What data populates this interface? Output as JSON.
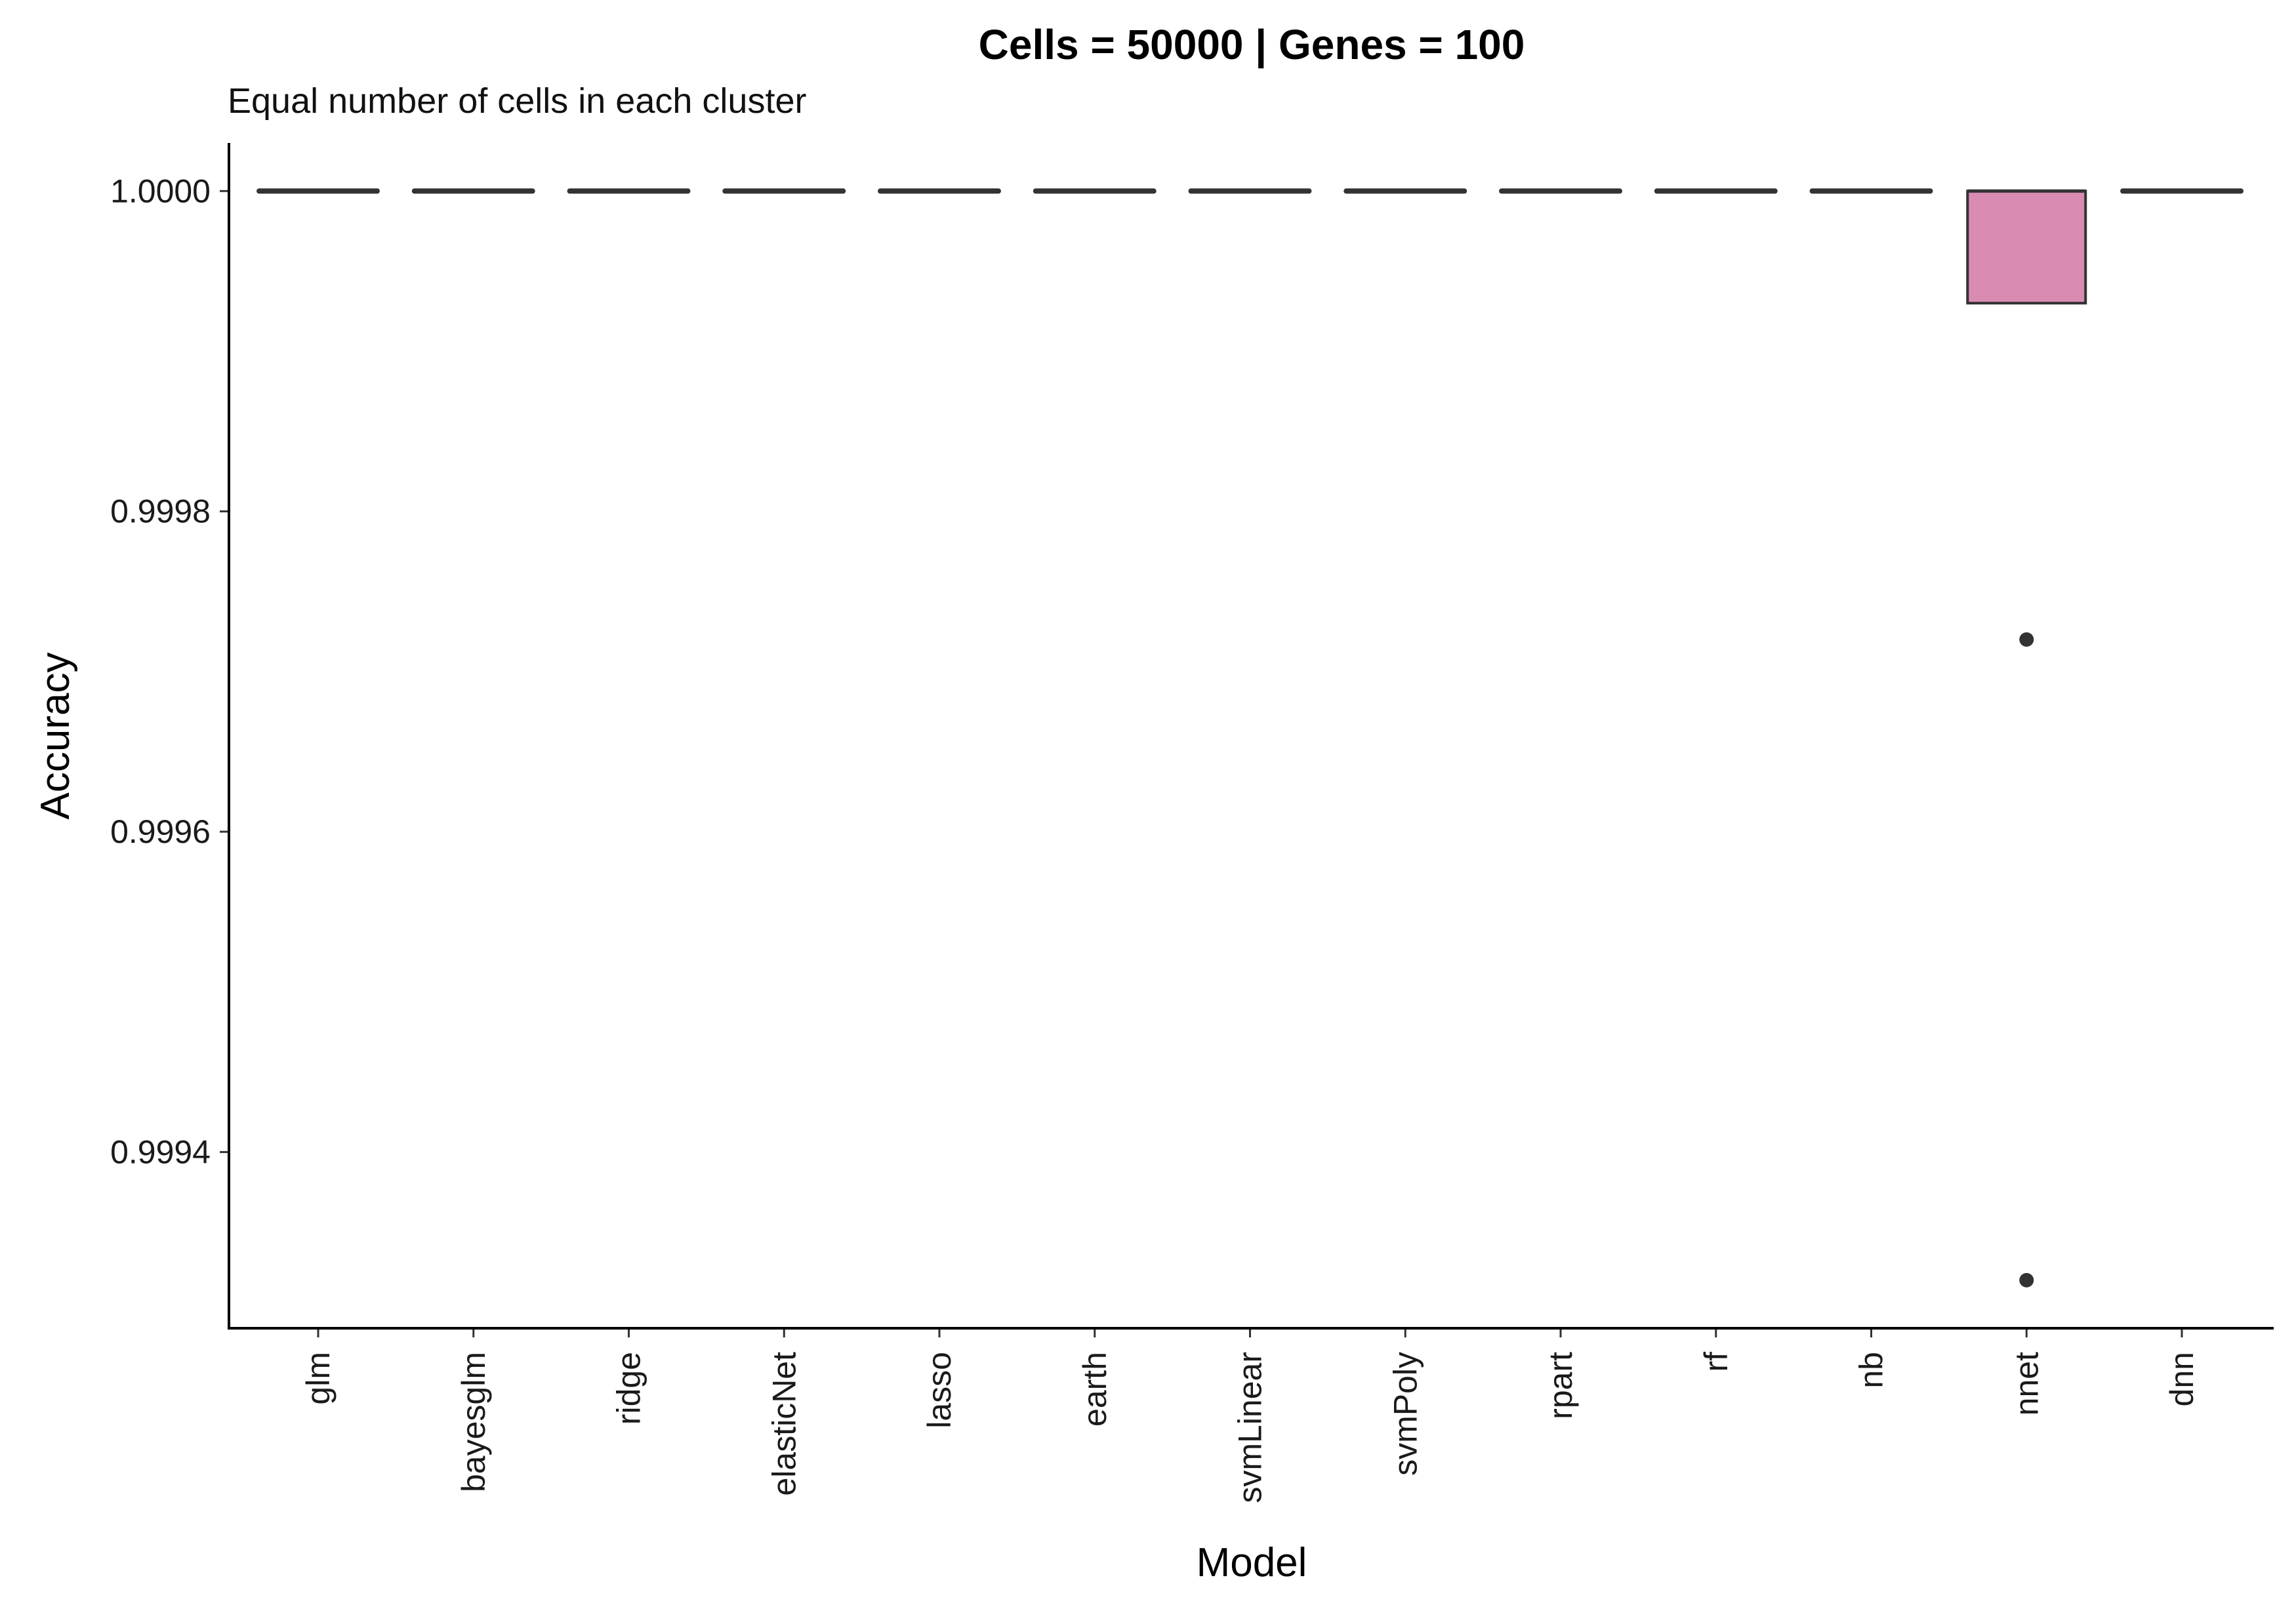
{
  "chart_data": {
    "type": "box",
    "title": "Cells = 50000 | Genes = 100",
    "subtitle": "Equal number of cells in each cluster",
    "xlabel": "Model",
    "ylabel": "Accuracy",
    "ylim": [
      0.99929,
      1.00003
    ],
    "yticks": [
      0.9994,
      0.9996,
      0.9998,
      1.0
    ],
    "ytick_labels": [
      "0.9994",
      "0.9996",
      "0.9998",
      "1.0000"
    ],
    "categories": [
      "glm",
      "bayesglm",
      "ridge",
      "elasticNet",
      "lasso",
      "earth",
      "svmLinear",
      "svmPoly",
      "rpart",
      "rf",
      "nb",
      "nnet",
      "dnn"
    ],
    "boxes": [
      {
        "model": "glm",
        "q1": 1.0,
        "median": 1.0,
        "q3": 1.0,
        "outliers": []
      },
      {
        "model": "bayesglm",
        "q1": 1.0,
        "median": 1.0,
        "q3": 1.0,
        "outliers": []
      },
      {
        "model": "ridge",
        "q1": 1.0,
        "median": 1.0,
        "q3": 1.0,
        "outliers": []
      },
      {
        "model": "elasticNet",
        "q1": 1.0,
        "median": 1.0,
        "q3": 1.0,
        "outliers": []
      },
      {
        "model": "lasso",
        "q1": 1.0,
        "median": 1.0,
        "q3": 1.0,
        "outliers": []
      },
      {
        "model": "earth",
        "q1": 1.0,
        "median": 1.0,
        "q3": 1.0,
        "outliers": []
      },
      {
        "model": "svmLinear",
        "q1": 1.0,
        "median": 1.0,
        "q3": 1.0,
        "outliers": []
      },
      {
        "model": "svmPoly",
        "q1": 1.0,
        "median": 1.0,
        "q3": 1.0,
        "outliers": []
      },
      {
        "model": "rpart",
        "q1": 1.0,
        "median": 1.0,
        "q3": 1.0,
        "outliers": []
      },
      {
        "model": "rf",
        "q1": 1.0,
        "median": 1.0,
        "q3": 1.0,
        "outliers": []
      },
      {
        "model": "nb",
        "q1": 1.0,
        "median": 1.0,
        "q3": 1.0,
        "outliers": []
      },
      {
        "model": "nnet",
        "q1": 0.99993,
        "median": 1.0,
        "q3": 1.0,
        "outliers": [
          0.99972,
          0.99932
        ]
      },
      {
        "model": "dnn",
        "q1": 1.0,
        "median": 1.0,
        "q3": 1.0,
        "outliers": []
      }
    ],
    "box_fill_color": "#d98bb1",
    "box_line_color": "#333333",
    "grid": false,
    "legend": "none"
  }
}
